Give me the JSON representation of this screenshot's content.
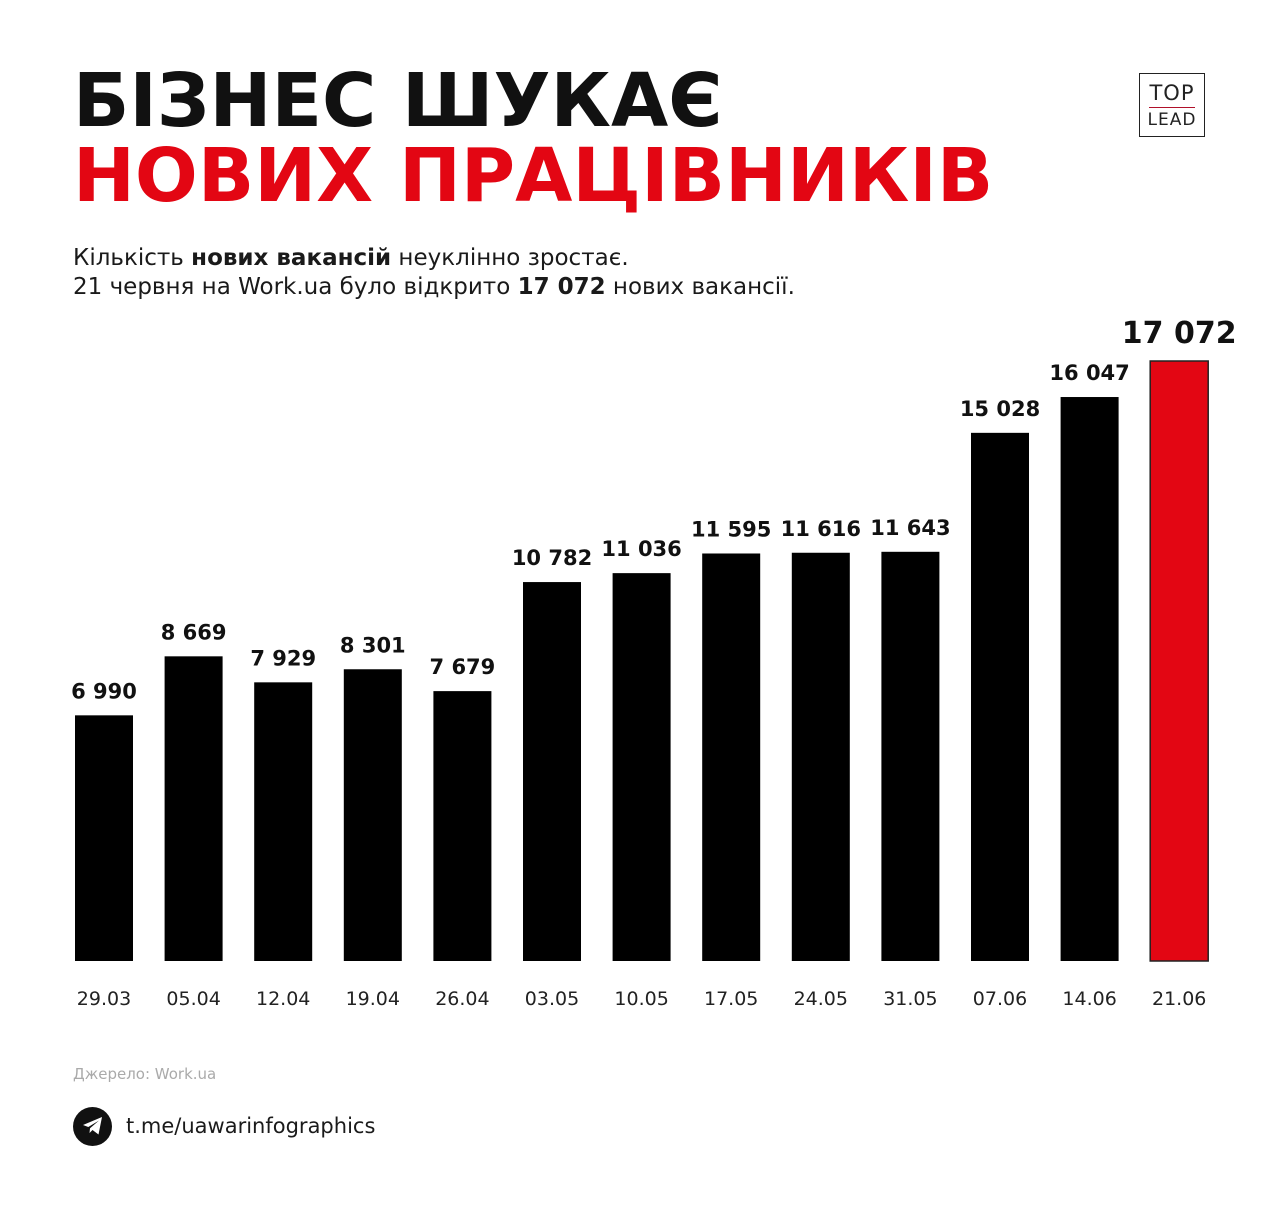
{
  "header": {
    "title_line1": "БІЗНЕС ШУКАЄ",
    "title_line2": "НОВИХ ПРАЦІВНИКІВ",
    "subtitle_l1_a": "Кількість ",
    "subtitle_l1_b": "нових вакансій",
    "subtitle_l1_c": " неуклінно зростає.",
    "subtitle_l2_a": "21 червня на Work.ua було відкрито ",
    "subtitle_l2_b": "17 072",
    "subtitle_l2_c": " нових вакансії."
  },
  "logo": {
    "top": "TOP",
    "lead": "LEAD"
  },
  "chart_data": {
    "type": "bar",
    "categories": [
      "29.03",
      "05.04",
      "12.04",
      "19.04",
      "26.04",
      "03.05",
      "10.05",
      "17.05",
      "24.05",
      "31.05",
      "07.06",
      "14.06",
      "21.06"
    ],
    "values": [
      6990,
      8669,
      7929,
      8301,
      7679,
      10782,
      11036,
      11595,
      11616,
      11643,
      15028,
      16047,
      17072
    ],
    "value_labels": [
      "6 990",
      "8 669",
      "7 929",
      "8 301",
      "7 679",
      "10 782",
      "11 036",
      "11 595",
      "11 616",
      "11 643",
      "15 028",
      "16 047",
      "17 072"
    ],
    "highlight_index": 12,
    "bar_color": "#000000",
    "highlight_color": "#e30613",
    "title": "",
    "xlabel": "",
    "ylabel": "",
    "grid": false
  },
  "footer": {
    "source": "Джерело: Work.ua",
    "telegram": "t.me/uawarinfographics",
    "telegram_icon": "telegram-icon"
  }
}
